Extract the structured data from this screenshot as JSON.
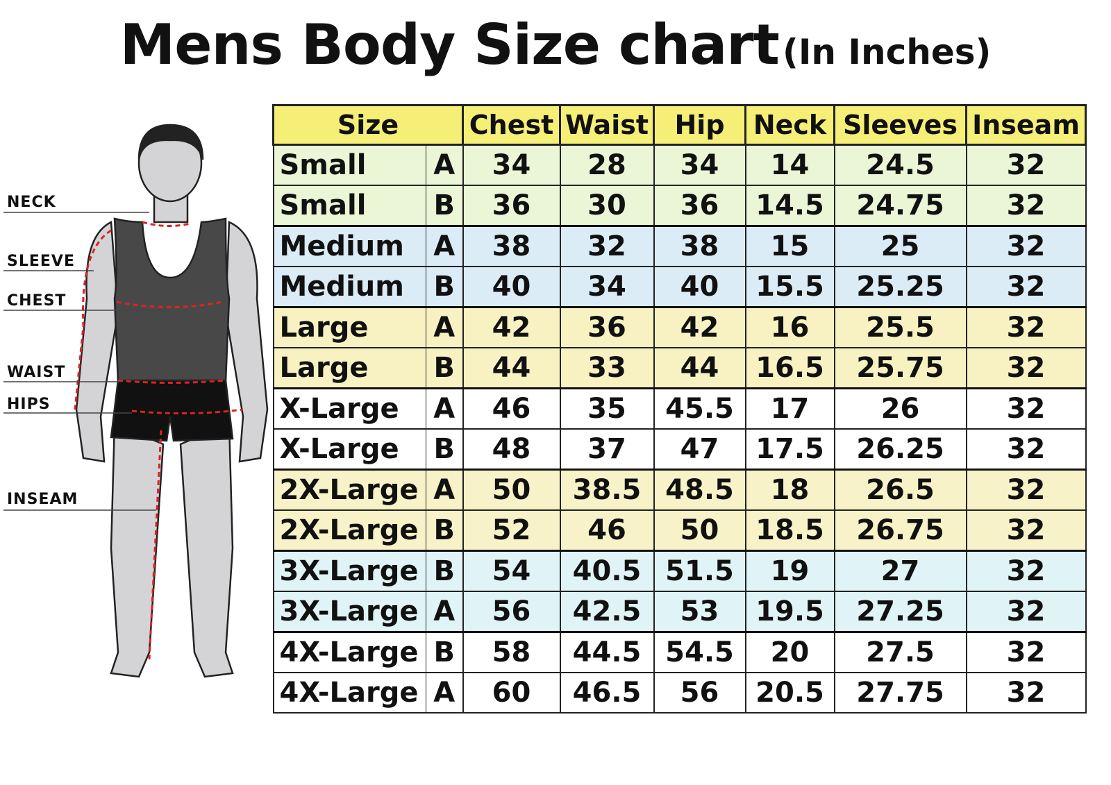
{
  "header": {
    "title": "Mens Body Size chart",
    "subtitle": "(In Inches)"
  },
  "figure": {
    "labels": [
      "NECK",
      "SLEEVE",
      "CHEST",
      "WAIST",
      "HIPS",
      "INSEAM"
    ]
  },
  "table": {
    "columns": [
      "Size",
      "Chest",
      "Waist",
      "Hip",
      "Neck",
      "Sleeves",
      "Inseam"
    ],
    "rows": [
      [
        "Small",
        "A",
        "34",
        "28",
        "34",
        "14",
        "24.5",
        "32"
      ],
      [
        "Small",
        "B",
        "36",
        "30",
        "36",
        "14.5",
        "24.75",
        "32"
      ],
      [
        "Medium",
        "A",
        "38",
        "32",
        "38",
        "15",
        "25",
        "32"
      ],
      [
        "Medium",
        "B",
        "40",
        "34",
        "40",
        "15.5",
        "25.25",
        "32"
      ],
      [
        "Large",
        "A",
        "42",
        "36",
        "42",
        "16",
        "25.5",
        "32"
      ],
      [
        "Large",
        "B",
        "44",
        "33",
        "44",
        "16.5",
        "25.75",
        "32"
      ],
      [
        "X-Large",
        "A",
        "46",
        "35",
        "45.5",
        "17",
        "26",
        "32"
      ],
      [
        "X-Large",
        "B",
        "48",
        "37",
        "47",
        "17.5",
        "26.25",
        "32"
      ],
      [
        "2X-Large",
        "A",
        "50",
        "38.5",
        "48.5",
        "18",
        "26.5",
        "32"
      ],
      [
        "2X-Large",
        "B",
        "52",
        "46",
        "50",
        "18.5",
        "26.75",
        "32"
      ],
      [
        "3X-Large",
        "B",
        "54",
        "40.5",
        "51.5",
        "19",
        "27",
        "32"
      ],
      [
        "3X-Large",
        "A",
        "56",
        "42.5",
        "53",
        "19.5",
        "27.25",
        "32"
      ],
      [
        "4X-Large",
        "B",
        "58",
        "44.5",
        "54.5",
        "20",
        "27.5",
        "32"
      ],
      [
        "4X-Large",
        "A",
        "60",
        "46.5",
        "56",
        "20.5",
        "27.75",
        "32"
      ]
    ]
  }
}
